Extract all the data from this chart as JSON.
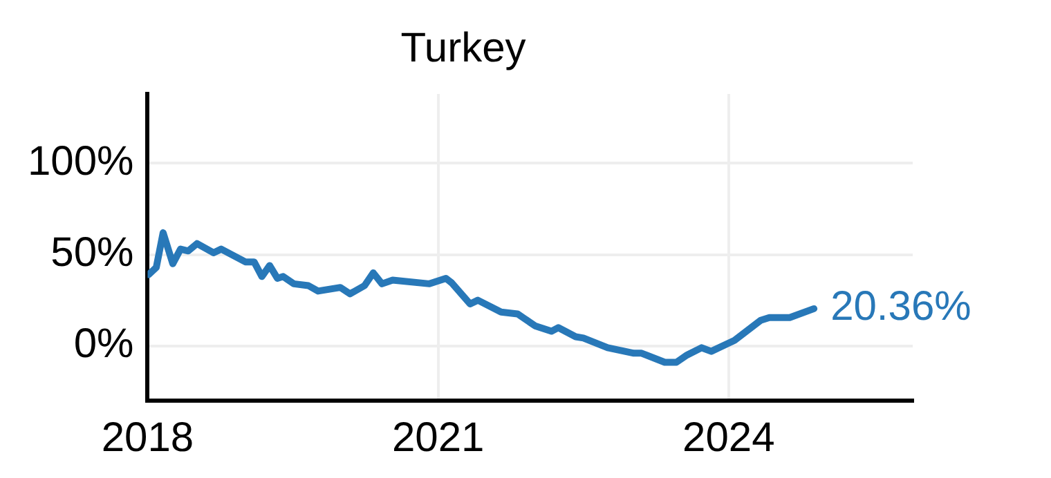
{
  "chart_data": {
    "type": "line",
    "title": "Turkey",
    "x": [
      2018.01,
      2018.09,
      2018.16,
      2018.26,
      2018.34,
      2018.42,
      2018.51,
      2018.68,
      2018.76,
      2019.01,
      2019.1,
      2019.18,
      2019.26,
      2019.34,
      2019.4,
      2019.51,
      2019.66,
      2019.76,
      2019.99,
      2020.09,
      2020.24,
      2020.33,
      2020.42,
      2020.53,
      2020.91,
      2021.08,
      2021.14,
      2021.33,
      2021.41,
      2021.65,
      2021.82,
      2022.0,
      2022.17,
      2022.24,
      2022.42,
      2022.5,
      2022.75,
      2023.02,
      2023.1,
      2023.34,
      2023.46,
      2023.57,
      2023.72,
      2023.82,
      2024.06,
      2024.33,
      2024.42,
      2024.63,
      2024.88
    ],
    "series": [
      {
        "color": "#2878b8",
        "values": [
          39,
          43,
          62,
          45,
          53,
          52,
          56,
          51,
          53,
          46,
          46,
          38,
          44,
          37,
          38,
          34,
          33,
          30,
          32,
          28.5,
          33,
          40,
          34,
          36,
          34,
          37,
          34.5,
          23,
          25,
          18.5,
          17.5,
          11,
          8,
          10,
          5,
          4.3,
          -1,
          -4,
          -4,
          -9,
          -9,
          -5,
          -1,
          -3,
          3,
          14,
          15.5,
          15.5,
          20.36
        ]
      }
    ],
    "xlim": [
      2018,
      2025.9
    ],
    "xticks": [
      2018,
      2021,
      2024
    ],
    "ylim": [
      -30,
      138
    ],
    "yticks": [
      {
        "value": 0,
        "label": "0%"
      },
      {
        "value": 50,
        "label": "50%"
      },
      {
        "value": 100,
        "label": "100%"
      }
    ],
    "grid": true,
    "legend": false,
    "marker": "none",
    "line_style": "solid",
    "annotations": [
      {
        "text": "20.36%",
        "x": 2024.88,
        "y": 20.36
      }
    ]
  }
}
